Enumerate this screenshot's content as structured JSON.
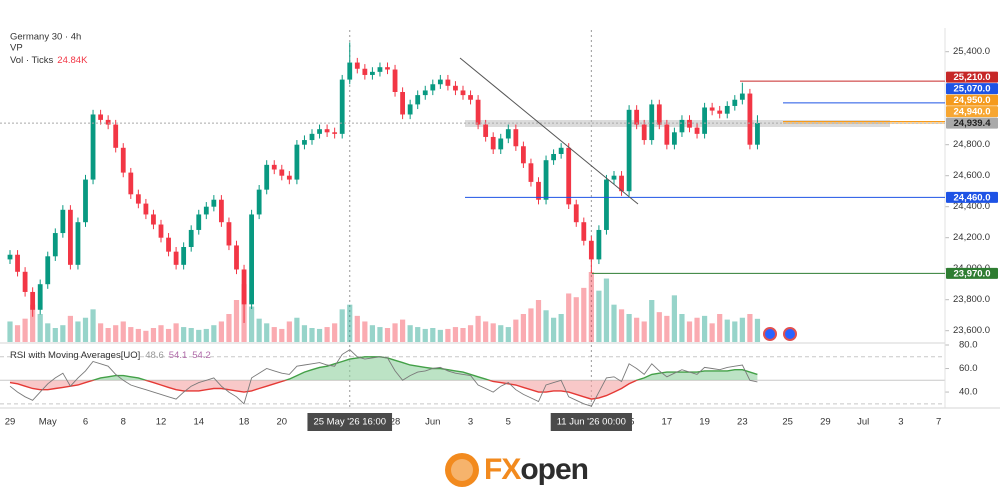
{
  "header": {
    "symbol": "Germany 30 · 4h",
    "vp": "VP",
    "volume_title": "Vol · Ticks",
    "volume_last": "24.84K"
  },
  "chart_data": {
    "type": "candlestick",
    "x": [
      "29",
      null,
      null,
      null,
      null,
      "May",
      null,
      null,
      null,
      null,
      "6",
      null,
      null,
      null,
      null,
      "8",
      null,
      null,
      null,
      null,
      "12",
      null,
      null,
      null,
      null,
      "14",
      null,
      null,
      null,
      null,
      null,
      "18",
      null,
      null,
      null,
      null,
      "20",
      null,
      null,
      null,
      null,
      null,
      null,
      null,
      null,
      "25 May '26  16:00",
      null,
      null,
      null,
      null,
      null,
      "28",
      null,
      null,
      null,
      null,
      "Jun",
      null,
      null,
      null,
      null,
      "3",
      null,
      null,
      null,
      null,
      "5",
      null,
      null,
      null,
      null,
      null,
      null,
      null,
      null,
      null,
      null,
      "11 Jun '26  00:00",
      null,
      null,
      null,
      null,
      "15",
      null,
      null,
      null,
      null,
      "17",
      null,
      null,
      null,
      null,
      "19",
      null,
      null,
      null,
      null,
      "23",
      null,
      null,
      null,
      null,
      null,
      "25",
      null,
      null,
      null,
      null,
      "29",
      null,
      null,
      null,
      null,
      "Jul",
      null,
      null,
      null,
      null,
      "3",
      null,
      null,
      null,
      null,
      "7"
    ],
    "ohlc": [
      [
        24060,
        24120,
        24030,
        24090
      ],
      [
        24090,
        24120,
        23950,
        23980
      ],
      [
        23980,
        24010,
        23820,
        23850
      ],
      [
        23850,
        23880,
        23690,
        23735
      ],
      [
        23735,
        23930,
        23705,
        23900
      ],
      [
        23900,
        24110,
        23870,
        24080
      ],
      [
        24080,
        24260,
        24050,
        24230
      ],
      [
        24230,
        24410,
        24200,
        24380
      ],
      [
        24380,
        24410,
        23995,
        24025
      ],
      [
        24025,
        24330,
        23995,
        24300
      ],
      [
        24300,
        24605,
        24270,
        24575
      ],
      [
        24575,
        25025,
        24545,
        24995
      ],
      [
        24995,
        25025,
        24930,
        24960
      ],
      [
        24960,
        24990,
        24900,
        24930
      ],
      [
        24930,
        24960,
        24750,
        24780
      ],
      [
        24780,
        24810,
        24590,
        24620
      ],
      [
        24620,
        24650,
        24450,
        24480
      ],
      [
        24480,
        24510,
        24390,
        24420
      ],
      [
        24420,
        24450,
        24320,
        24350
      ],
      [
        24350,
        24380,
        24255,
        24285
      ],
      [
        24285,
        24315,
        24170,
        24200
      ],
      [
        24200,
        24230,
        24080,
        24110
      ],
      [
        24110,
        24140,
        23995,
        24025
      ],
      [
        24025,
        24170,
        23995,
        24140
      ],
      [
        24140,
        24280,
        24110,
        24250
      ],
      [
        24250,
        24380,
        24220,
        24350
      ],
      [
        24350,
        24430,
        24320,
        24400
      ],
      [
        24400,
        24475,
        24370,
        24445
      ],
      [
        24445,
        24475,
        24270,
        24300
      ],
      [
        24300,
        24330,
        24120,
        24150
      ],
      [
        24150,
        24180,
        23965,
        23995
      ],
      [
        23995,
        24025,
        23650,
        23770
      ],
      [
        23770,
        24380,
        23740,
        24350
      ],
      [
        24350,
        24540,
        24320,
        24510
      ],
      [
        24510,
        24700,
        24480,
        24670
      ],
      [
        24670,
        24700,
        24610,
        24640
      ],
      [
        24640,
        24670,
        24570,
        24600
      ],
      [
        24600,
        24630,
        24545,
        24575
      ],
      [
        24575,
        24830,
        24545,
        24800
      ],
      [
        24800,
        24860,
        24770,
        24830
      ],
      [
        24830,
        24900,
        24800,
        24870
      ],
      [
        24870,
        24930,
        24840,
        24900
      ],
      [
        24900,
        24930,
        24850,
        24880
      ],
      [
        24880,
        24910,
        24840,
        24870
      ],
      [
        24870,
        25250,
        24840,
        25220
      ],
      [
        25220,
        25460,
        25190,
        25330
      ],
      [
        25330,
        25360,
        25260,
        25290
      ],
      [
        25290,
        25320,
        25220,
        25250
      ],
      [
        25250,
        25300,
        25220,
        25270
      ],
      [
        25270,
        25330,
        25240,
        25300
      ],
      [
        25300,
        25330,
        25255,
        25285
      ],
      [
        25285,
        25315,
        25110,
        25140
      ],
      [
        25140,
        25170,
        24965,
        24995
      ],
      [
        24995,
        25090,
        24965,
        25060
      ],
      [
        25060,
        25150,
        25030,
        25120
      ],
      [
        25120,
        25180,
        25090,
        25150
      ],
      [
        25150,
        25220,
        25120,
        25190
      ],
      [
        25190,
        25250,
        25160,
        25220
      ],
      [
        25220,
        25250,
        25150,
        25180
      ],
      [
        25180,
        25210,
        25120,
        25150
      ],
      [
        25150,
        25180,
        25090,
        25120
      ],
      [
        25120,
        25150,
        25060,
        25090
      ],
      [
        25090,
        25120,
        24900,
        24930
      ],
      [
        24930,
        24960,
        24820,
        24850
      ],
      [
        24850,
        24880,
        24740,
        24770
      ],
      [
        24770,
        24870,
        24740,
        24840
      ],
      [
        24840,
        24930,
        24810,
        24900
      ],
      [
        24900,
        24930,
        24760,
        24790
      ],
      [
        24790,
        24820,
        24650,
        24680
      ],
      [
        24680,
        24710,
        24530,
        24560
      ],
      [
        24560,
        24590,
        24415,
        24445
      ],
      [
        24445,
        24730,
        24415,
        24700
      ],
      [
        24700,
        24770,
        24670,
        24740
      ],
      [
        24740,
        24810,
        24710,
        24780
      ],
      [
        24780,
        24810,
        24385,
        24415
      ],
      [
        24415,
        24445,
        24270,
        24300
      ],
      [
        24300,
        24330,
        24150,
        24180
      ],
      [
        24180,
        24210,
        23970,
        24060
      ],
      [
        24060,
        24280,
        24030,
        24250
      ],
      [
        24250,
        24605,
        24220,
        24575
      ],
      [
        24575,
        24630,
        24545,
        24600
      ],
      [
        24600,
        24630,
        24470,
        24500
      ],
      [
        24500,
        25055,
        24470,
        25025
      ],
      [
        25025,
        25055,
        24900,
        24930
      ],
      [
        24930,
        24960,
        24800,
        24830
      ],
      [
        24830,
        25090,
        24800,
        25060
      ],
      [
        25060,
        25090,
        24900,
        24930
      ],
      [
        24930,
        24960,
        24770,
        24800
      ],
      [
        24800,
        24910,
        24770,
        24880
      ],
      [
        24880,
        24990,
        24850,
        24960
      ],
      [
        24960,
        24990,
        24880,
        24910
      ],
      [
        24910,
        24940,
        24840,
        24870
      ],
      [
        24870,
        25070,
        24840,
        25040
      ],
      [
        25040,
        25070,
        24990,
        25020
      ],
      [
        25020,
        25050,
        24970,
        25000
      ],
      [
        25000,
        25080,
        24970,
        25050
      ],
      [
        25050,
        25120,
        25020,
        25090
      ],
      [
        25090,
        25200,
        25060,
        25130
      ],
      [
        25130,
        25160,
        24770,
        24800
      ],
      [
        24800,
        24990,
        24770,
        24940
      ],
      null,
      null,
      null,
      null,
      null,
      null,
      null,
      null,
      null,
      null,
      null,
      null,
      null,
      null,
      null,
      null,
      null,
      null,
      null,
      null,
      null,
      null,
      null,
      null
    ],
    "volume": [
      22000,
      18000,
      25000,
      40000,
      30000,
      20000,
      15000,
      18000,
      28000,
      22000,
      26000,
      35000,
      20000,
      15000,
      18000,
      22000,
      16000,
      14000,
      12000,
      15000,
      18000,
      14000,
      20000,
      16000,
      15000,
      13000,
      14000,
      18000,
      22000,
      30000,
      45000,
      62000,
      38000,
      25000,
      20000,
      16000,
      14000,
      22000,
      26000,
      18000,
      15000,
      14000,
      16000,
      20000,
      35000,
      40000,
      28000,
      22000,
      18000,
      16000,
      15000,
      20000,
      24000,
      18000,
      16000,
      14000,
      15000,
      13000,
      14000,
      16000,
      15000,
      18000,
      28000,
      22000,
      20000,
      18000,
      16000,
      24000,
      30000,
      36000,
      45000,
      34000,
      26000,
      30000,
      52000,
      48000,
      58000,
      75000,
      55000,
      68000,
      40000,
      35000,
      30000,
      26000,
      22000,
      45000,
      32000,
      28000,
      50000,
      30000,
      22000,
      26000,
      28000,
      20000,
      30000,
      24000,
      22000,
      26000,
      30000,
      24840,
      null,
      null,
      null,
      null,
      null,
      null,
      null,
      null,
      null,
      null,
      null,
      null,
      null,
      null,
      null,
      null,
      null,
      null,
      null,
      null,
      null,
      null,
      null,
      null
    ],
    "up_color": "#089981",
    "down_color": "#f23645",
    "ylim": [
      23540,
      25540
    ],
    "yticks": [
      {
        "value": 25400,
        "label": "25,400.0"
      },
      {
        "value": 24800,
        "label": "24,800.0"
      },
      {
        "value": 24600,
        "label": "24,600.0"
      },
      {
        "value": 24400,
        "label": "24,400.0"
      },
      {
        "value": 24200,
        "label": "24,200.0"
      },
      {
        "value": 24000,
        "label": "24,000.0"
      },
      {
        "value": 23800,
        "label": "23,800.0"
      },
      {
        "value": 23600,
        "label": "23,600.0"
      }
    ],
    "levels": [
      {
        "value": 25210,
        "label": "25,210.0",
        "color": "#c62828"
      },
      {
        "value": 25070,
        "label": "25,070.0",
        "color": "#1e53e5"
      },
      {
        "value": 24950,
        "label": "24,950.0",
        "color": "#f59a1c"
      },
      {
        "value": 24940,
        "label": "24,940.0",
        "color": "#f7a631"
      },
      {
        "value": 24939.4,
        "label": "24,939.4",
        "color": "#a9a9a9"
      },
      {
        "value": 24460,
        "label": "24,460.0",
        "color": "#1e53e5"
      },
      {
        "value": 23970,
        "label": "23,970.0",
        "color": "#2e7d32"
      }
    ],
    "rsi": {
      "title": "RSI with Moving Averages[UO]",
      "readout": [
        48.6,
        54.1,
        54.2
      ],
      "ylim": [
        29,
        80
      ],
      "yticks": [
        {
          "value": 80,
          "label": "80.0"
        },
        {
          "value": 60,
          "label": "60.0"
        },
        {
          "value": 40,
          "label": "40.0"
        }
      ],
      "bands": [
        70,
        50,
        30
      ],
      "values": [
        45,
        40,
        36,
        33,
        40,
        47,
        52,
        56,
        45,
        52,
        58,
        66,
        64,
        62,
        55,
        50,
        46,
        44,
        42,
        40,
        38,
        36,
        34,
        40,
        45,
        48,
        50,
        52,
        45,
        40,
        36,
        30,
        52,
        56,
        60,
        58,
        56,
        55,
        62,
        63,
        64,
        65,
        63,
        62,
        72,
        76,
        70,
        68,
        69,
        70,
        69,
        58,
        50,
        54,
        57,
        58,
        60,
        61,
        58,
        56,
        55,
        54,
        46,
        43,
        40,
        45,
        48,
        42,
        38,
        35,
        32,
        46,
        48,
        50,
        36,
        33,
        30,
        28,
        40,
        52,
        53,
        49,
        64,
        60,
        55,
        64,
        58,
        53,
        56,
        59,
        57,
        55,
        61,
        60,
        59,
        61,
        62,
        63,
        50,
        48.6,
        null,
        null,
        null,
        null,
        null,
        null,
        null,
        null,
        null,
        null,
        null,
        null,
        null,
        null,
        null,
        null,
        null,
        null,
        null,
        null,
        null,
        null,
        null,
        null
      ],
      "ma": [
        48,
        47,
        45,
        43,
        42,
        42,
        43,
        44,
        45,
        46,
        48,
        50,
        52,
        53,
        54,
        54,
        53,
        52,
        50,
        48,
        46,
        44,
        42,
        41,
        41,
        41,
        42,
        43,
        43,
        42,
        41,
        40,
        41,
        43,
        45,
        47,
        49,
        51,
        54,
        57,
        59,
        61,
        62,
        64,
        66,
        68,
        69,
        70,
        70,
        70,
        69,
        67,
        65,
        63,
        62,
        61,
        60,
        60,
        59,
        58,
        57,
        55,
        53,
        51,
        49,
        48,
        47,
        46,
        44,
        42,
        40,
        40,
        41,
        41,
        40,
        38,
        36,
        34,
        35,
        37,
        40,
        43,
        47,
        50,
        52,
        55,
        56,
        57,
        57,
        57,
        57,
        57,
        58,
        58,
        58,
        58,
        59,
        59,
        57,
        55,
        null,
        null,
        null,
        null,
        null,
        null,
        null,
        null,
        null,
        null,
        null,
        null,
        null,
        null,
        null,
        null,
        null,
        null,
        null,
        null,
        null,
        null,
        null,
        null
      ]
    }
  },
  "brand": {
    "fx": "FX",
    "open": "open"
  }
}
